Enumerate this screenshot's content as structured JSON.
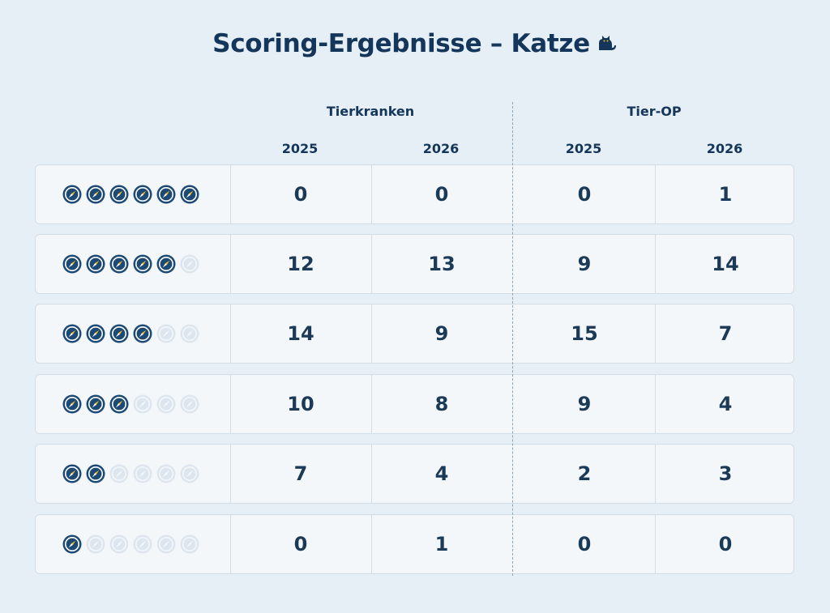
{
  "title": "Scoring-Ergebnisse – Katze",
  "title_icon": "cat-icon",
  "groups": [
    {
      "label": "Tierkranken",
      "years": [
        "2025",
        "2026"
      ]
    },
    {
      "label": "Tier-OP",
      "years": [
        "2025",
        "2026"
      ]
    }
  ],
  "rating_icon": "compass-icon",
  "colors": {
    "filled": "#1d4a74",
    "accent": "#f5c228",
    "empty": "#dde6ee",
    "text": "#14365a"
  },
  "rows": [
    {
      "rating": 6,
      "values": [
        "0",
        "0",
        "0",
        "1"
      ]
    },
    {
      "rating": 5,
      "values": [
        "12",
        "13",
        "9",
        "14"
      ]
    },
    {
      "rating": 4,
      "values": [
        "14",
        "9",
        "15",
        "7"
      ]
    },
    {
      "rating": 3,
      "values": [
        "10",
        "8",
        "9",
        "4"
      ]
    },
    {
      "rating": 2,
      "values": [
        "7",
        "4",
        "2",
        "3"
      ]
    },
    {
      "rating": 1,
      "values": [
        "0",
        "1",
        "0",
        "0"
      ]
    }
  ]
}
